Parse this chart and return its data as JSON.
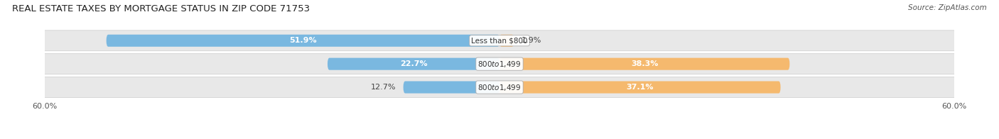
{
  "title": "REAL ESTATE TAXES BY MORTGAGE STATUS IN ZIP CODE 71753",
  "source": "Source: ZipAtlas.com",
  "categories": [
    "Less than $800",
    "$800 to $1,499",
    "$800 to $1,499"
  ],
  "without_mortgage": [
    51.9,
    22.7,
    12.7
  ],
  "with_mortgage": [
    1.9,
    38.3,
    37.1
  ],
  "xlim": 60.0,
  "bar_color_without": "#7ab8e0",
  "bar_color_with": "#f5b96e",
  "row_bg_color": "#e8e8e8",
  "fig_bg_color": "#ffffff",
  "title_fontsize": 9.5,
  "source_fontsize": 7.5,
  "label_fontsize": 8,
  "tick_fontsize": 8
}
